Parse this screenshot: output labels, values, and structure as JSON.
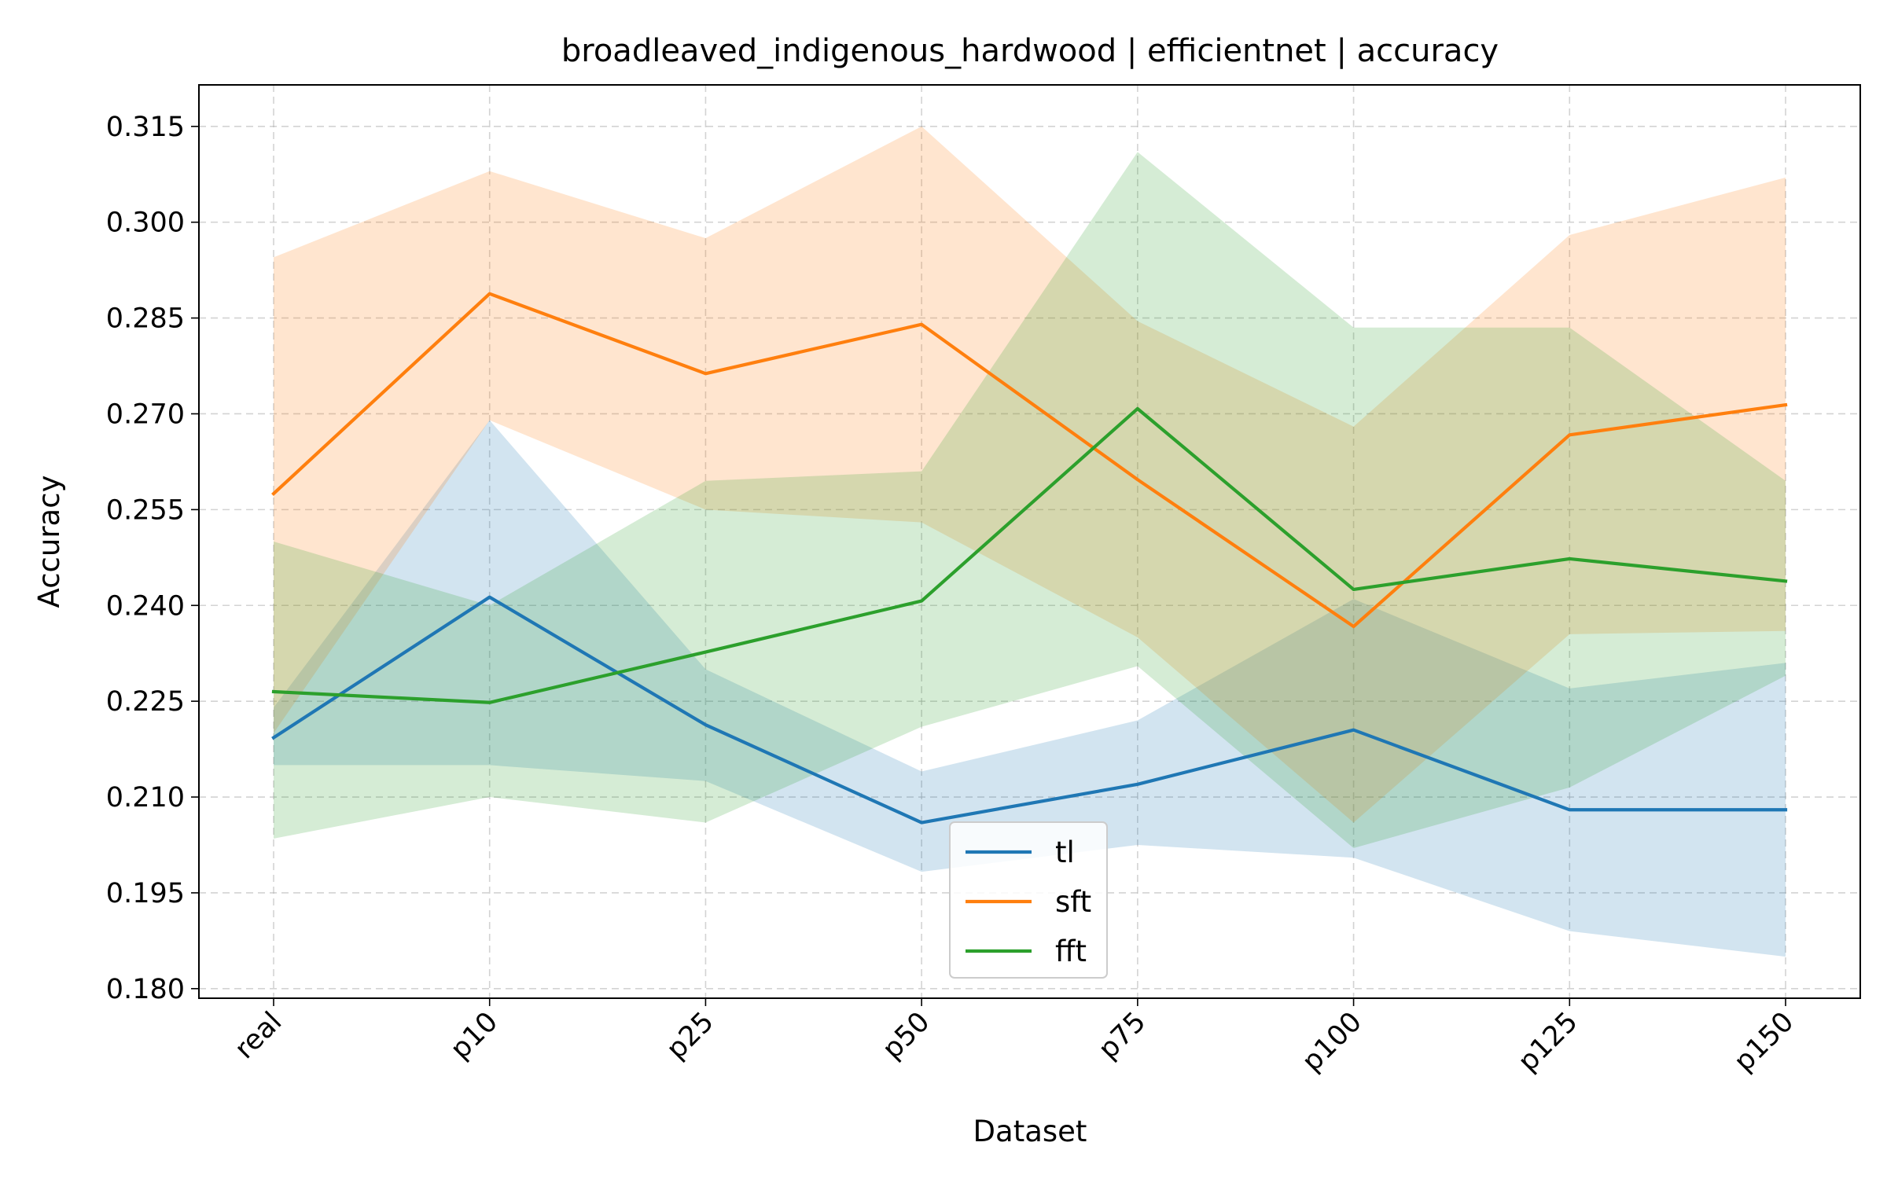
{
  "chart_data": {
    "type": "line",
    "title": "broadleaved_indigenous_hardwood | efficientnet | accuracy",
    "xlabel": "Dataset",
    "ylabel": "Accuracy",
    "categories": [
      "real",
      "p10",
      "p25",
      "p50",
      "p75",
      "p100",
      "p125",
      "p150"
    ],
    "ylim": [
      0.1785,
      0.3215
    ],
    "yticks": [
      0.18,
      0.195,
      0.21,
      0.225,
      0.24,
      0.255,
      0.27,
      0.285,
      0.3,
      0.315
    ],
    "ytick_labels": [
      "0.180",
      "0.195",
      "0.210",
      "0.225",
      "0.240",
      "0.255",
      "0.270",
      "0.285",
      "0.300",
      "0.315"
    ],
    "grid": true,
    "legend_position": "bottom-center",
    "series": [
      {
        "name": "tl",
        "color": "#1f77b4",
        "values": [
          0.2193,
          0.2413,
          0.2213,
          0.206,
          0.212,
          0.2205,
          0.208,
          0.208
        ],
        "band_lower": [
          0.215,
          0.215,
          0.2125,
          0.1983,
          0.2025,
          0.2005,
          0.189,
          0.185
        ],
        "band_upper": [
          0.224,
          0.269,
          0.23,
          0.214,
          0.222,
          0.241,
          0.227,
          0.231
        ]
      },
      {
        "name": "sft",
        "color": "#ff7f0e",
        "values": [
          0.2575,
          0.2888,
          0.2763,
          0.284,
          0.2597,
          0.2367,
          0.2667,
          0.2714
        ],
        "band_lower": [
          0.22,
          0.269,
          0.255,
          0.253,
          0.235,
          0.206,
          0.2355,
          0.236
        ],
        "band_upper": [
          0.2945,
          0.308,
          0.2975,
          0.315,
          0.2845,
          0.268,
          0.298,
          0.307
        ]
      },
      {
        "name": "fft",
        "color": "#2ca02c",
        "values": [
          0.2265,
          0.2248,
          0.2327,
          0.2407,
          0.2708,
          0.2425,
          0.2473,
          0.2438
        ],
        "band_lower": [
          0.2035,
          0.21,
          0.206,
          0.221,
          0.2305,
          0.202,
          0.2115,
          0.229
        ],
        "band_upper": [
          0.25,
          0.24,
          0.2595,
          0.261,
          0.311,
          0.2835,
          0.2835,
          0.2595
        ]
      }
    ]
  }
}
